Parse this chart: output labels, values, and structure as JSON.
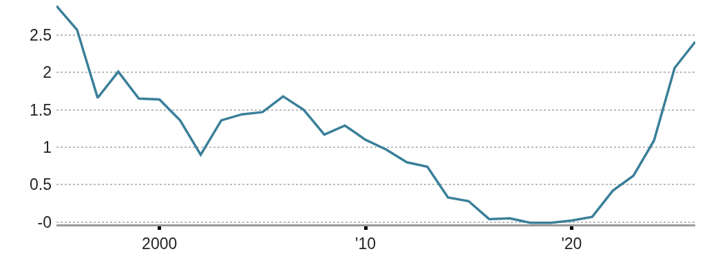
{
  "chart_data": {
    "type": "line",
    "x": [
      1995,
      1996,
      1997,
      1998,
      1999,
      2000,
      2001,
      2002,
      2003,
      2004,
      2005,
      2006,
      2007,
      2008,
      2009,
      2010,
      2011,
      2012,
      2013,
      2014,
      2015,
      2016,
      2017,
      2018,
      2019,
      2020,
      2021,
      2022,
      2023,
      2024,
      2025,
      2026
    ],
    "series": [
      {
        "color": "#3a7f99",
        "values": [
          2.89,
          2.57,
          1.66,
          2.01,
          1.65,
          1.64,
          1.36,
          0.9,
          1.36,
          1.44,
          1.47,
          1.68,
          1.5,
          1.17,
          1.29,
          1.1,
          0.97,
          0.8,
          0.74,
          0.33,
          0.28,
          0.04,
          0.05,
          -0.01,
          -0.01,
          0.02,
          0.07,
          0.42,
          0.62,
          1.09,
          2.06,
          2.41
        ]
      }
    ],
    "xlim": [
      1995,
      2026
    ],
    "ylim": [
      -0.03,
      2.95
    ],
    "xticks": [
      2000,
      {
        "value": 2010,
        "label": "'10"
      },
      {
        "value": 2020,
        "label": "'20"
      }
    ],
    "yticks": [
      {
        "value": 0,
        "label": "-0"
      },
      0.5,
      1,
      1.5,
      2,
      2.5
    ],
    "grid": "y",
    "marker": "none",
    "line_style": "solid"
  }
}
